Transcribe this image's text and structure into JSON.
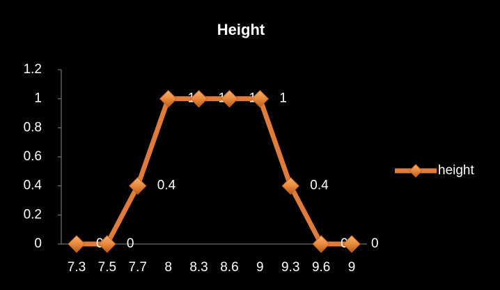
{
  "chart_data": {
    "type": "line",
    "title": "Height",
    "categories": [
      "7.3",
      "7.5",
      "7.7",
      "8",
      "8.3",
      "8.6",
      "9",
      "9.3",
      "9.6",
      "9"
    ],
    "series": [
      {
        "name": "height",
        "color": "#e07b39",
        "values": [
          0,
          0,
          0.4,
          1,
          1,
          1,
          1,
          0.4,
          0,
          0
        ]
      }
    ],
    "ylim": [
      0,
      1.2
    ],
    "yticks": [
      0,
      0.2,
      0.4,
      0.6,
      0.8,
      1,
      1.2
    ],
    "data_labels": true,
    "legend": "right"
  }
}
